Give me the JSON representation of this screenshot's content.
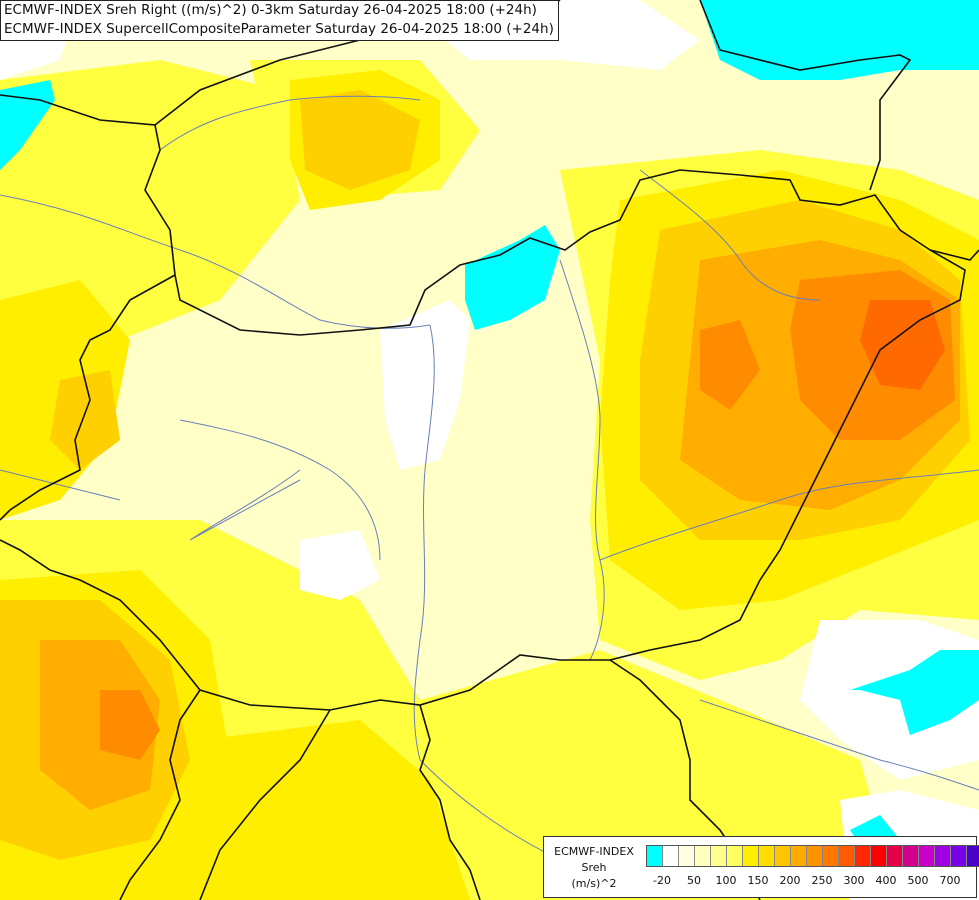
{
  "titles": [
    "ECMWF-INDEX Sreh Right ((m/s)^2) 0-3km Saturday 26-04-2025 18:00 (+24h)",
    "ECMWF-INDEX SupercellCompositeParameter Saturday 26-04-2025 18:00 (+24h)"
  ],
  "legend": {
    "line1": "ECMWF-INDEX",
    "line2": "Sreh",
    "line3": "(m/s)^2",
    "colors": [
      "#00ffff",
      "#ffffff",
      "#ffffe0",
      "#ffffc0",
      "#ffff90",
      "#ffff60",
      "#ffee00",
      "#ffdd00",
      "#ffc400",
      "#ffab00",
      "#ff9200",
      "#ff7800",
      "#ff5a00",
      "#ff2800",
      "#ff0000",
      "#e6004c",
      "#d40090",
      "#c800c8",
      "#a000e6",
      "#7800e6",
      "#4b00c8",
      "#1e00a0",
      "#000080"
    ],
    "ticks": [
      "-20",
      "50",
      "100",
      "150",
      "200",
      "250",
      "300",
      "400",
      "500",
      "700"
    ]
  },
  "colors": {
    "cyan": "#00ffff",
    "white": "#ffffff",
    "pale": "#ffffc0",
    "yellow": "#ffff00",
    "gold": "#ffd800",
    "orange": "#ffaa00",
    "deep_orange": "#ff8000",
    "red_orange": "#ff5a00"
  }
}
